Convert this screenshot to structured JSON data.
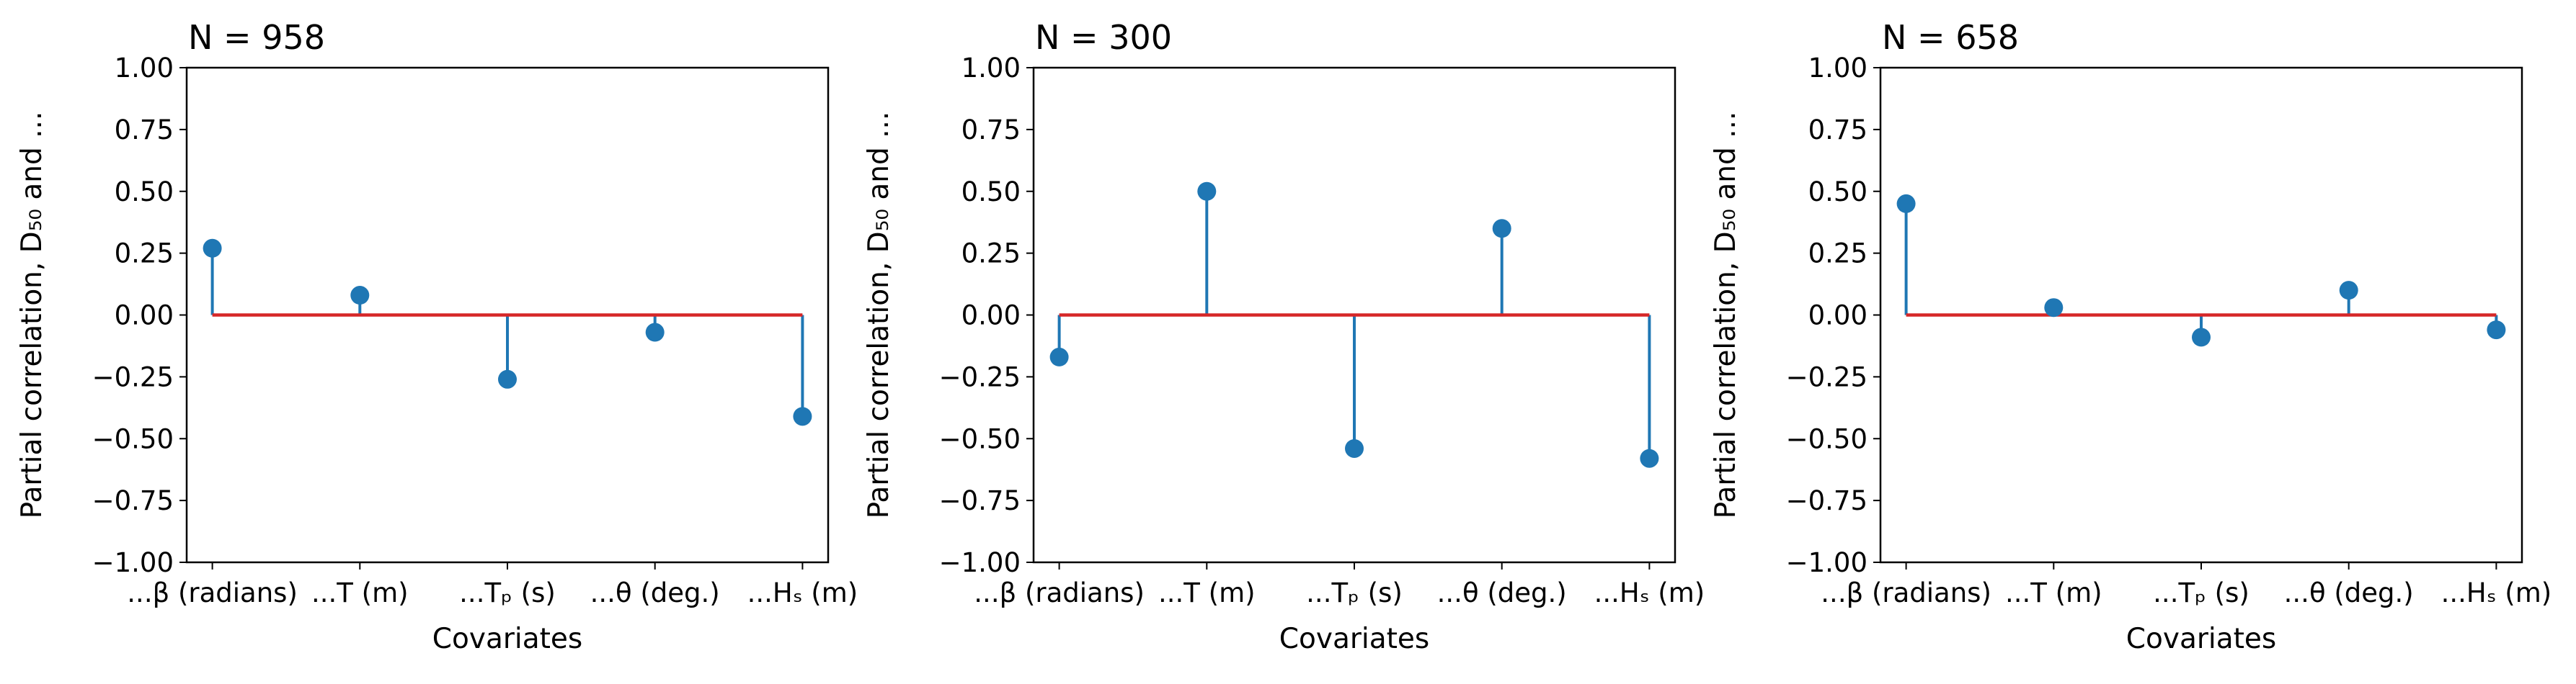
{
  "chart_data": [
    {
      "type": "stem",
      "title": "N = 958",
      "xlabel": "Covariates",
      "ylabel": "Partial correlation, D₅₀ and ...",
      "ylim": [
        -1.0,
        1.0
      ],
      "yticks": [
        "−1.00",
        "−0.75",
        "−0.50",
        "−0.25",
        "0.00",
        "0.25",
        "0.50",
        "0.75",
        "1.00"
      ],
      "categories": [
        "...β (radians)",
        "...T (m)",
        "...Tₚ (s)",
        "...θ (deg.)",
        "...Hₛ (m)"
      ],
      "values": [
        0.27,
        0.08,
        -0.26,
        -0.07,
        -0.41
      ],
      "stem_color": "#1f77b4",
      "baseline_color": "#d62728"
    },
    {
      "type": "stem",
      "title": "N = 300",
      "xlabel": "Covariates",
      "ylabel": "Partial correlation, D₅₀ and ...",
      "ylim": [
        -1.0,
        1.0
      ],
      "yticks": [
        "−1.00",
        "−0.75",
        "−0.50",
        "−0.25",
        "0.00",
        "0.25",
        "0.50",
        "0.75",
        "1.00"
      ],
      "categories": [
        "...β (radians)",
        "...T (m)",
        "...Tₚ (s)",
        "...θ (deg.)",
        "...Hₛ (m)"
      ],
      "values": [
        -0.17,
        0.5,
        -0.54,
        0.35,
        -0.58
      ],
      "stem_color": "#1f77b4",
      "baseline_color": "#d62728"
    },
    {
      "type": "stem",
      "title": "N = 658",
      "xlabel": "Covariates",
      "ylabel": "Partial correlation, D₅₀ and ...",
      "ylim": [
        -1.0,
        1.0
      ],
      "yticks": [
        "−1.00",
        "−0.75",
        "−0.50",
        "−0.25",
        "0.00",
        "0.25",
        "0.50",
        "0.75",
        "1.00"
      ],
      "categories": [
        "...β (radians)",
        "...T (m)",
        "...Tₚ (s)",
        "...θ (deg.)",
        "...Hₛ (m)"
      ],
      "values": [
        0.45,
        0.03,
        -0.09,
        0.1,
        -0.06
      ],
      "stem_color": "#1f77b4",
      "baseline_color": "#d62728"
    }
  ]
}
